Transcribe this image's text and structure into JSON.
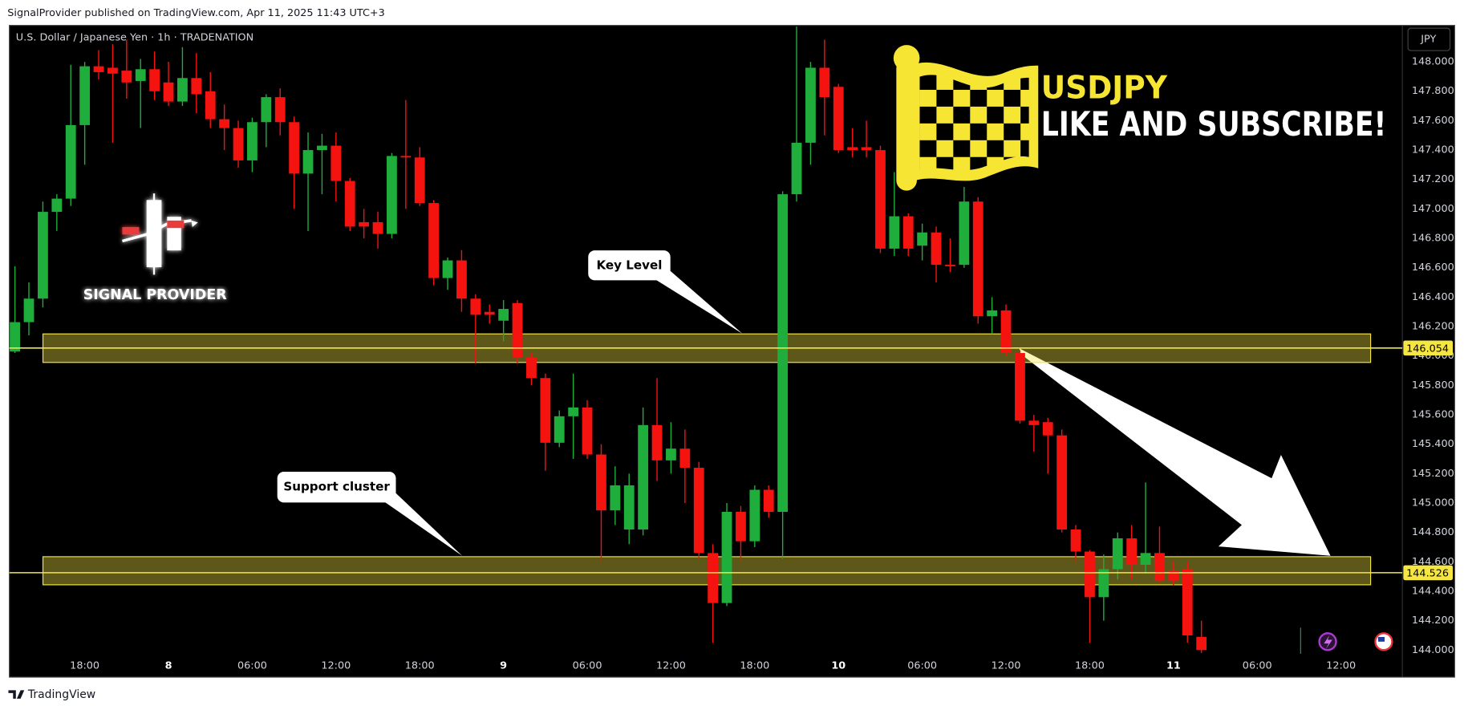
{
  "header": {
    "publisher": "SignalProvider published on TradingView.com, Apr 11, 2025 11:43 UTC+3",
    "brand": "TradingView"
  },
  "chart_data": {
    "type": "candlestick",
    "symbol": "U.S. Dollar / Japanese Yen · 1h · TRADENATION",
    "currency": "JPY",
    "title": "USDJPY",
    "subtitle": "LIKE AND SUBSCRIBE!",
    "logo_text": "SIGNAL PROVIDER",
    "categories": [
      null,
      null,
      null,
      null,
      null,
      "18:00",
      null,
      null,
      null,
      null,
      null,
      "8",
      null,
      null,
      null,
      null,
      null,
      "06:00",
      null,
      null,
      null,
      null,
      null,
      "12:00",
      null,
      null,
      null,
      null,
      null,
      "18:00",
      null,
      null,
      null,
      null,
      null,
      "9",
      null,
      null,
      null,
      null,
      null,
      "06:00",
      null,
      null,
      null,
      null,
      null,
      "12:00",
      null,
      null,
      null,
      null,
      null,
      "18:00",
      null,
      null,
      null,
      null,
      null,
      "10",
      null,
      null,
      null,
      null,
      null,
      "06:00",
      null,
      null,
      null,
      null,
      null,
      "12:00",
      null,
      null,
      null,
      null,
      null,
      "18:00",
      null,
      null,
      null,
      null,
      null,
      "11",
      null,
      null,
      null,
      null,
      null,
      "06:00",
      null,
      null,
      null,
      null,
      null,
      "12:00",
      null,
      null,
      null,
      null
    ],
    "open": [
      146.03,
      146.23,
      146.39,
      146.98,
      147.07,
      147.57,
      147.97,
      147.96,
      147.94,
      147.87,
      147.95,
      147.86,
      147.73,
      147.89,
      147.8,
      147.61,
      147.55,
      147.33,
      147.59,
      147.76,
      147.59,
      147.24,
      147.4,
      147.43,
      147.19,
      146.91,
      146.91,
      146.83,
      147.36,
      147.35,
      147.04,
      146.53,
      146.65,
      146.39,
      146.3,
      146.24,
      146.36,
      145.99,
      145.85,
      145.41,
      145.59,
      145.65,
      145.33,
      144.95,
      144.82,
      144.82,
      145.53,
      145.29,
      145.37,
      145.24,
      144.66,
      144.32,
      144.94,
      144.74,
      145.09,
      144.94,
      147.1,
      147.45,
      147.96,
      147.83,
      147.42,
      147.42,
      147.4,
      146.73,
      146.95,
      146.75,
      146.84,
      146.62,
      146.62,
      147.05,
      146.27,
      146.31,
      146.02,
      145.56,
      145.55,
      145.46,
      144.82,
      144.67,
      144.36,
      144.55,
      144.76,
      144.58,
      144.66,
      144.54,
      144.55,
      144.09,
      null,
      null,
      null,
      null,
      null,
      null,
      null,
      null,
      null,
      null,
      null,
      null,
      null,
      null
    ],
    "high": [
      146.61,
      146.5,
      147.05,
      147.1,
      147.98,
      148.0,
      148.08,
      148.12,
      148.15,
      148.02,
      148.07,
      148.0,
      148.1,
      148.06,
      147.93,
      147.71,
      147.6,
      147.62,
      147.78,
      147.82,
      147.63,
      147.52,
      147.51,
      147.52,
      147.21,
      147.0,
      146.98,
      147.38,
      147.74,
      147.42,
      147.06,
      146.67,
      146.72,
      146.42,
      146.35,
      146.38,
      146.38,
      146.02,
      145.88,
      145.63,
      145.88,
      145.7,
      145.4,
      145.25,
      145.2,
      145.65,
      145.85,
      145.55,
      145.5,
      145.28,
      144.72,
      145.0,
      144.98,
      145.12,
      145.12,
      147.12,
      148.24,
      148.0,
      148.15,
      147.85,
      147.55,
      147.6,
      147.43,
      147.25,
      146.97,
      146.9,
      146.88,
      146.8,
      147.15,
      147.08,
      146.4,
      146.35,
      146.04,
      145.6,
      145.58,
      145.5,
      144.85,
      144.68,
      144.65,
      144.8,
      144.85,
      145.14,
      144.84,
      144.6,
      144.6,
      144.2,
      null,
      null,
      null,
      null,
      null,
      null,
      null,
      null,
      null,
      null,
      null,
      null,
      null,
      null
    ],
    "low": [
      146.02,
      146.14,
      146.33,
      146.85,
      147.02,
      147.3,
      147.88,
      147.45,
      147.75,
      147.55,
      147.74,
      147.7,
      147.7,
      147.65,
      147.55,
      147.4,
      147.28,
      147.25,
      147.42,
      147.5,
      147.0,
      146.85,
      147.1,
      147.05,
      146.85,
      146.8,
      146.73,
      146.8,
      147.0,
      147.02,
      146.48,
      146.45,
      146.3,
      145.95,
      146.22,
      146.1,
      145.95,
      145.8,
      145.22,
      145.38,
      145.3,
      145.3,
      144.6,
      144.85,
      144.72,
      144.78,
      145.15,
      145.2,
      145.0,
      144.62,
      144.05,
      144.3,
      144.6,
      144.7,
      144.9,
      144.62,
      147.05,
      147.3,
      147.5,
      147.38,
      147.35,
      147.35,
      146.7,
      146.68,
      146.68,
      146.65,
      146.5,
      146.57,
      146.6,
      146.22,
      146.15,
      146.0,
      145.54,
      145.35,
      145.2,
      144.8,
      144.6,
      144.05,
      144.2,
      144.48,
      144.48,
      144.52,
      144.45,
      144.44,
      144.05,
      143.98,
      null,
      null,
      null,
      null,
      null,
      null,
      null,
      null,
      null,
      null,
      null,
      null,
      null,
      null
    ],
    "close": [
      146.23,
      146.39,
      146.98,
      147.07,
      147.57,
      147.97,
      147.93,
      147.92,
      147.86,
      147.95,
      147.8,
      147.73,
      147.89,
      147.78,
      147.61,
      147.55,
      147.33,
      147.59,
      147.76,
      147.59,
      147.24,
      147.4,
      147.43,
      147.19,
      146.88,
      146.88,
      146.83,
      147.36,
      147.35,
      147.04,
      146.53,
      146.65,
      146.39,
      146.28,
      146.28,
      146.32,
      145.99,
      145.85,
      145.41,
      145.59,
      145.65,
      145.33,
      144.95,
      145.12,
      145.12,
      145.53,
      145.29,
      145.37,
      145.24,
      144.66,
      144.32,
      144.94,
      144.74,
      145.09,
      144.94,
      147.1,
      147.45,
      147.96,
      147.76,
      147.4,
      147.4,
      147.4,
      146.73,
      146.95,
      146.73,
      146.84,
      146.62,
      146.61,
      147.05,
      146.27,
      146.31,
      146.02,
      145.56,
      145.53,
      145.46,
      144.82,
      144.67,
      144.36,
      144.55,
      144.76,
      144.58,
      144.66,
      144.47,
      144.47,
      144.1,
      144.0,
      null,
      null,
      null,
      null,
      null,
      null,
      null,
      null,
      null,
      null,
      null,
      null,
      null,
      null
    ],
    "up_color": "#1fae3c",
    "down_color": "#f5130f",
    "ylim": [
      143.816,
      148.248
    ],
    "yticks": [
      {
        "value": 144,
        "label": "144.000"
      },
      {
        "value": 144.2,
        "label": "144.200"
      },
      {
        "value": 144.4,
        "label": "144.400"
      },
      {
        "value": 144.6,
        "label": "144.600"
      },
      {
        "value": 144.8,
        "label": "144.800"
      },
      {
        "value": 145,
        "label": "145.000"
      },
      {
        "value": 145.2,
        "label": "145.200"
      },
      {
        "value": 145.4,
        "label": "145.400"
      },
      {
        "value": 145.6,
        "label": "145.600"
      },
      {
        "value": 145.8,
        "label": "145.800"
      },
      {
        "value": 146,
        "label": "146.000"
      },
      {
        "value": 146.2,
        "label": "146.200"
      },
      {
        "value": 146.4,
        "label": "146.400"
      },
      {
        "value": 146.6,
        "label": "146.600"
      },
      {
        "value": 146.8,
        "label": "146.800"
      },
      {
        "value": 147,
        "label": "147.000"
      },
      {
        "value": 147.2,
        "label": "147.200"
      },
      {
        "value": 147.4,
        "label": "147.400"
      },
      {
        "value": 147.6,
        "label": "147.600"
      },
      {
        "value": 147.8,
        "label": "147.800"
      },
      {
        "value": 148,
        "label": "148.000"
      }
    ],
    "grid": false,
    "levels": [
      {
        "value": 146.054,
        "zone": [
          145.956,
          146.15
        ],
        "color": "#f5e642",
        "label": "Key Level"
      },
      {
        "value": 144.526,
        "zone": [
          144.444,
          144.635
        ],
        "color": "#f5e642",
        "label": "Support cluster"
      }
    ]
  }
}
